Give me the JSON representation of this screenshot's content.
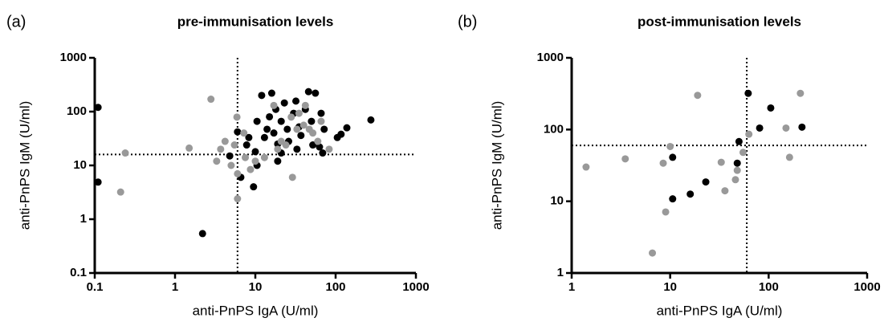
{
  "chart_data": [
    {
      "type": "scatter",
      "panel_label": "(a)",
      "title": "pre-immunisation levels",
      "x_label": "anti-PnPS IgA (U/ml)",
      "y_label": "anti-PnPS IgM (U/ml)",
      "log_x": true,
      "log_y": true,
      "xlim": [
        0.1,
        1000
      ],
      "ylim": [
        0.1,
        1000
      ],
      "xticks": [
        0.1,
        1,
        10,
        100,
        1000
      ],
      "yticks": [
        0.1,
        1,
        10,
        100,
        1000
      ],
      "reference_lines": {
        "x": 6,
        "y": 16
      },
      "series": [
        {
          "color": "#000000",
          "x": [
            0.11,
            0.11,
            2.2,
            4.8,
            6.6,
            7.8,
            9.5,
            10,
            10.5,
            12,
            13,
            14,
            16,
            17,
            18,
            19,
            21,
            21,
            23,
            25,
            26,
            30,
            32,
            33,
            35,
            37,
            42,
            46,
            50,
            52,
            56,
            63,
            66,
            69,
            72,
            105,
            117,
            138,
            275,
            10.5,
            15,
            8.3,
            6,
            19
          ],
          "values": [
            120,
            4.9,
            0.54,
            15,
            6,
            24,
            4,
            18,
            66,
            200,
            33,
            47,
            220,
            40,
            110,
            25,
            66,
            17,
            145,
            47,
            28,
            93,
            157,
            20,
            52,
            36,
            110,
            235,
            66,
            24,
            220,
            22,
            93,
            17,
            47,
            33,
            38,
            50,
            70,
            10,
            80,
            33,
            42,
            12
          ]
        },
        {
          "color": "#999999",
          "x": [
            0.21,
            0.24,
            1.5,
            2.8,
            3.3,
            4.2,
            5,
            5.5,
            5.9,
            6,
            6,
            7.2,
            8.7,
            10,
            13,
            17,
            19,
            24,
            28,
            29,
            33,
            40,
            47,
            52,
            60,
            42,
            66,
            83,
            3.7,
            7.5,
            21,
            35
          ],
          "values": [
            3.2,
            17,
            21,
            170,
            12,
            28,
            10,
            24,
            79,
            7,
            2.4,
            40,
            8.4,
            12,
            14,
            130,
            20,
            24,
            79,
            6,
            47,
            56,
            47,
            40,
            28,
            130,
            66,
            20,
            20,
            14,
            28,
            93
          ]
        }
      ]
    },
    {
      "type": "scatter",
      "panel_label": "(b)",
      "title": "post-immunisation levels",
      "x_label": "anti-PnPS IgA (U/ml)",
      "y_label": "anti-PnPS IgM (U/ml)",
      "log_x": true,
      "log_y": true,
      "xlim": [
        1,
        1000
      ],
      "ylim": [
        1,
        1000
      ],
      "xticks": [
        1,
        10,
        100,
        1000
      ],
      "yticks": [
        1,
        10,
        100,
        1000
      ],
      "reference_lines": {
        "x": 60,
        "y": 60
      },
      "series": [
        {
          "color": "#000000",
          "x": [
            10.6,
            10.6,
            16,
            23,
            48,
            50,
            62,
            81,
            105,
            218
          ],
          "values": [
            41,
            10.8,
            12.6,
            18.6,
            34,
            68,
            320,
            105,
            200,
            108
          ]
        },
        {
          "color": "#999999",
          "x": [
            1.4,
            3.5,
            8.5,
            9,
            6.6,
            10,
            19,
            33,
            36,
            48,
            55,
            63,
            150,
            163,
            210,
            46
          ],
          "values": [
            30,
            39,
            34,
            7.1,
            1.9,
            58,
            300,
            35,
            14,
            27,
            48,
            86,
            105,
            41,
            320,
            20
          ]
        }
      ]
    }
  ]
}
